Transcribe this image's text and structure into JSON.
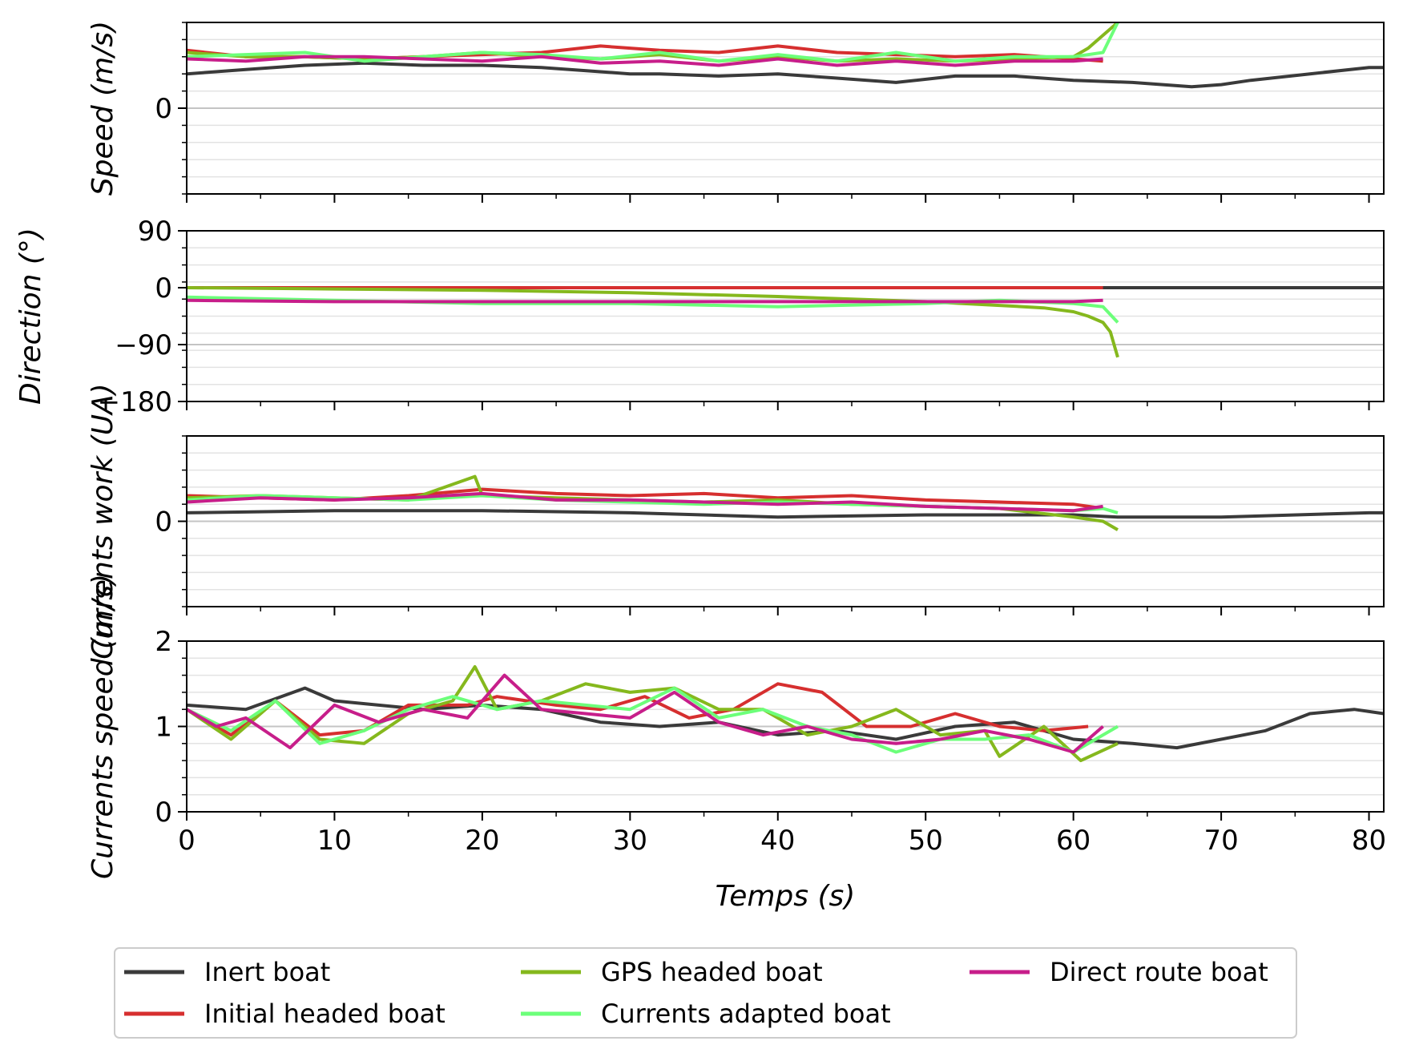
{
  "chart_data": {
    "type": "line",
    "layout": "4 vertically stacked panels sharing the x axis",
    "xlabel": "Temps (s)",
    "xlim": [
      0,
      81
    ],
    "x_ticks": [
      0,
      10,
      20,
      30,
      40,
      50,
      60,
      70,
      80
    ],
    "x_tick_labels": [
      "0",
      "10",
      "20",
      "30",
      "40",
      "50",
      "60",
      "70",
      "80"
    ],
    "grid": "horizontal minor gridlines, light grey",
    "legend_placement": "bottom-center, 3 columns",
    "legend": [
      {
        "name": "Inert boat",
        "color": "#3a3a3a"
      },
      {
        "name": "Initial headed boat",
        "color": "#d62f2f"
      },
      {
        "name": "GPS headed boat",
        "color": "#85b81d"
      },
      {
        "name": "Currents adapted boat",
        "color": "#6cff7a"
      },
      {
        "name": "Direct route boat",
        "color": "#c71e8a"
      }
    ],
    "panels": [
      {
        "ylabel": "Speed (m/s)",
        "ylim": [
          -2,
          2
        ],
        "y_ticks": [
          0
        ],
        "y_tick_labels": [
          "0"
        ],
        "series": [
          {
            "name": "Inert boat",
            "x": [
              0,
              4,
              8,
              12,
              16,
              20,
              24,
              28,
              30,
              32,
              36,
              40,
              42,
              44,
              48,
              52,
              56,
              60,
              64,
              68,
              70,
              72,
              76,
              80,
              81
            ],
            "y": [
              0.8,
              0.9,
              1.0,
              1.05,
              1.0,
              1.0,
              0.95,
              0.85,
              0.8,
              0.8,
              0.75,
              0.8,
              0.75,
              0.7,
              0.6,
              0.75,
              0.75,
              0.65,
              0.6,
              0.5,
              0.55,
              0.65,
              0.8,
              0.95,
              0.95
            ]
          },
          {
            "name": "Initial headed boat",
            "x": [
              0,
              4,
              8,
              12,
              16,
              20,
              24,
              28,
              32,
              36,
              40,
              44,
              48,
              52,
              56,
              60,
              62
            ],
            "y": [
              1.35,
              1.2,
              1.2,
              1.15,
              1.2,
              1.25,
              1.3,
              1.45,
              1.35,
              1.3,
              1.45,
              1.3,
              1.25,
              1.2,
              1.25,
              1.15,
              1.1
            ]
          },
          {
            "name": "GPS headed boat",
            "x": [
              0,
              4,
              8,
              12,
              16,
              20,
              24,
              28,
              32,
              36,
              40,
              44,
              48,
              52,
              56,
              60,
              61,
              62,
              63
            ],
            "y": [
              1.3,
              1.2,
              1.2,
              1.15,
              1.2,
              1.3,
              1.2,
              1.15,
              1.25,
              1.1,
              1.2,
              1.1,
              1.15,
              1.1,
              1.15,
              1.2,
              1.4,
              1.7,
              2.0
            ]
          },
          {
            "name": "Currents adapted boat",
            "x": [
              0,
              4,
              8,
              12,
              16,
              20,
              24,
              28,
              32,
              36,
              40,
              44,
              48,
              52,
              56,
              60,
              62,
              63
            ],
            "y": [
              1.2,
              1.25,
              1.3,
              1.1,
              1.2,
              1.3,
              1.25,
              1.15,
              1.3,
              1.1,
              1.25,
              1.1,
              1.3,
              1.1,
              1.2,
              1.2,
              1.3,
              2.0
            ]
          },
          {
            "name": "Direct route boat",
            "x": [
              0,
              4,
              8,
              12,
              16,
              20,
              24,
              28,
              32,
              36,
              40,
              44,
              48,
              52,
              56,
              60,
              62
            ],
            "y": [
              1.15,
              1.1,
              1.2,
              1.2,
              1.15,
              1.1,
              1.2,
              1.05,
              1.1,
              1.0,
              1.15,
              1.0,
              1.1,
              1.0,
              1.1,
              1.1,
              1.15
            ]
          }
        ]
      },
      {
        "ylabel": "Direction (°)",
        "ylim": [
          -180,
          90
        ],
        "y_ticks": [
          90,
          0,
          -90,
          -180
        ],
        "y_tick_labels": [
          "90",
          "0",
          "−90",
          "−180"
        ],
        "series": [
          {
            "name": "Inert boat",
            "x": [
              0,
              81
            ],
            "y": [
              0,
              0
            ]
          },
          {
            "name": "Initial headed boat",
            "x": [
              0,
              62
            ],
            "y": [
              0,
              0
            ]
          },
          {
            "name": "GPS headed boat",
            "x": [
              0,
              10,
              20,
              30,
              40,
              50,
              55,
              58,
              60,
              61,
              62,
              62.5,
              63
            ],
            "y": [
              0,
              -2,
              -4,
              -8,
              -14,
              -22,
              -28,
              -32,
              -38,
              -45,
              -55,
              -70,
              -110
            ]
          },
          {
            "name": "Currents adapted boat",
            "x": [
              0,
              10,
              20,
              30,
              40,
              50,
              55,
              60,
              62,
              63
            ],
            "y": [
              -15,
              -20,
              -25,
              -25,
              -30,
              -25,
              -20,
              -25,
              -30,
              -55
            ]
          },
          {
            "name": "Direct route boat",
            "x": [
              0,
              10,
              20,
              30,
              40,
              50,
              60,
              62
            ],
            "y": [
              -20,
              -22,
              -22,
              -22,
              -22,
              -22,
              -22,
              -20
            ]
          }
        ]
      },
      {
        "ylabel": "Currents work (UA)",
        "ylim": [
          -2,
          2
        ],
        "y_ticks": [
          0
        ],
        "y_tick_labels": [
          "0"
        ],
        "series": [
          {
            "name": "Inert boat",
            "x": [
              0,
              10,
              20,
              30,
              40,
              50,
              60,
              63,
              70,
              80,
              81
            ],
            "y": [
              0.2,
              0.25,
              0.25,
              0.2,
              0.1,
              0.15,
              0.15,
              0.1,
              0.1,
              0.2,
              0.2
            ]
          },
          {
            "name": "Initial headed boat",
            "x": [
              0,
              5,
              10,
              15,
              20,
              25,
              30,
              35,
              40,
              45,
              50,
              55,
              60,
              62
            ],
            "y": [
              0.6,
              0.55,
              0.5,
              0.6,
              0.75,
              0.65,
              0.6,
              0.65,
              0.55,
              0.6,
              0.5,
              0.45,
              0.4,
              0.3
            ]
          },
          {
            "name": "GPS headed boat",
            "x": [
              0,
              5,
              10,
              15,
              19.5,
              20,
              25,
              30,
              35,
              40,
              45,
              50,
              55,
              60,
              62,
              63
            ],
            "y": [
              0.55,
              0.6,
              0.55,
              0.5,
              1.05,
              0.6,
              0.55,
              0.5,
              0.45,
              0.5,
              0.4,
              0.35,
              0.3,
              0.1,
              0.0,
              -0.2
            ]
          },
          {
            "name": "Currents adapted boat",
            "x": [
              0,
              5,
              10,
              15,
              20,
              25,
              30,
              35,
              40,
              45,
              50,
              55,
              60,
              62,
              63
            ],
            "y": [
              0.5,
              0.6,
              0.55,
              0.5,
              0.6,
              0.5,
              0.45,
              0.4,
              0.45,
              0.4,
              0.35,
              0.3,
              0.25,
              0.3,
              0.2
            ]
          },
          {
            "name": "Direct route boat",
            "x": [
              0,
              5,
              10,
              15,
              20,
              25,
              30,
              35,
              40,
              45,
              50,
              55,
              60,
              62
            ],
            "y": [
              0.45,
              0.55,
              0.5,
              0.55,
              0.65,
              0.5,
              0.5,
              0.45,
              0.4,
              0.45,
              0.35,
              0.3,
              0.25,
              0.35
            ]
          }
        ]
      },
      {
        "ylabel": "Currents speed (m/s)",
        "ylim": [
          0,
          2
        ],
        "y_ticks": [
          0,
          1,
          2
        ],
        "y_tick_labels": [
          "0",
          "1",
          "2"
        ],
        "series": [
          {
            "name": "Inert boat",
            "x": [
              0,
              4,
              8,
              10,
              13,
              16,
              20,
              24,
              28,
              32,
              36,
              40,
              44,
              48,
              52,
              56,
              60,
              64,
              67,
              70,
              73,
              76,
              79,
              81
            ],
            "y": [
              1.25,
              1.2,
              1.45,
              1.3,
              1.25,
              1.2,
              1.25,
              1.2,
              1.05,
              1.0,
              1.05,
              0.9,
              0.95,
              0.85,
              1.0,
              1.05,
              0.85,
              0.8,
              0.75,
              0.85,
              0.95,
              1.15,
              1.2,
              1.15
            ]
          },
          {
            "name": "Initial headed boat",
            "x": [
              0,
              3,
              6,
              9,
              12,
              15,
              19,
              21,
              25,
              28,
              31,
              34,
              37,
              40,
              43,
              46,
              49,
              52,
              55,
              58,
              61
            ],
            "y": [
              1.2,
              0.9,
              1.3,
              0.9,
              0.95,
              1.25,
              1.25,
              1.35,
              1.25,
              1.2,
              1.35,
              1.1,
              1.2,
              1.5,
              1.4,
              1.0,
              1.0,
              1.15,
              1.0,
              0.95,
              1.0
            ]
          },
          {
            "name": "GPS headed boat",
            "x": [
              0,
              3,
              6,
              9,
              12,
              15,
              18,
              19.5,
              21,
              24,
              27,
              30,
              33,
              36,
              39,
              42,
              45,
              48,
              51,
              54,
              55,
              58,
              60.5,
              63
            ],
            "y": [
              1.2,
              0.85,
              1.3,
              0.85,
              0.8,
              1.15,
              1.3,
              1.7,
              1.2,
              1.3,
              1.5,
              1.4,
              1.45,
              1.2,
              1.2,
              0.9,
              1.0,
              1.2,
              0.9,
              0.95,
              0.65,
              1.0,
              0.6,
              0.8
            ]
          },
          {
            "name": "Currents adapted boat",
            "x": [
              0,
              3,
              6,
              9,
              12,
              15,
              18,
              21,
              24,
              27,
              30,
              33,
              36,
              39,
              42,
              45,
              48,
              51,
              54,
              57,
              60,
              63
            ],
            "y": [
              1.2,
              0.95,
              1.3,
              0.8,
              0.95,
              1.2,
              1.35,
              1.2,
              1.3,
              1.25,
              1.2,
              1.45,
              1.1,
              1.2,
              1.0,
              0.9,
              0.7,
              0.85,
              0.85,
              0.9,
              0.7,
              1.0
            ]
          },
          {
            "name": "Direct route boat",
            "x": [
              0,
              2,
              4,
              7,
              10,
              13,
              16,
              19,
              21.5,
              24,
              27,
              30,
              33,
              36,
              39,
              42,
              45,
              48,
              51,
              54,
              57,
              60,
              62
            ],
            "y": [
              1.2,
              1.0,
              1.1,
              0.75,
              1.25,
              1.05,
              1.2,
              1.1,
              1.6,
              1.2,
              1.15,
              1.1,
              1.4,
              1.05,
              0.9,
              1.0,
              0.85,
              0.8,
              0.85,
              0.95,
              0.85,
              0.7,
              1.0
            ]
          }
        ]
      }
    ]
  }
}
